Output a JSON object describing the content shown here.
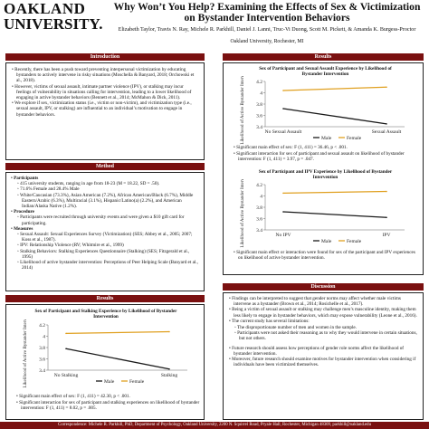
{
  "header": {
    "logo_line1": "OAKLAND",
    "logo_line2": "UNIVERSITY.",
    "title": "Why Won’t You Help? Examining the Effects of Sex & Victimization on Bystander Intervention Behaviors",
    "authors": "Elizabeth Taylor, Travis N. Ray, Michele R. Parkhill, Daniel J. Lanni, Truc-Vi Duong, Scott M. Pickett, & Amanda K. Burgess-Proctor",
    "affiliation": "Oakland University, Rochester, MI"
  },
  "introduction": {
    "heading": "Introduction",
    "bullets": [
      "Recently, there has been a push toward preventing interpersonal victimization by educating bystanders to actively intervene in risky situations (Moschella & Banyard, 2018; Orchowski et al., 2018).",
      "However, victims of sexual assault, intimate partner violence (IPV), or stalking may incur feelings of vulnerability in situations calling for intervention, leading to a lower likelihood of engaging in active bystander behaviors (Bennett et al., 2014; McMahon & Dick, 2011).",
      "We explore if sex, victimization status (i.e., victim or non-victim), and victimization type (i.e., sexual assault, IPV, or stalking) are influential to an individual’s motivation to engage in bystander behaviors."
    ]
  },
  "method": {
    "heading": "Method",
    "participants_label": "Participants",
    "participants": [
      "415 university students, ranging in age from 18-23 (M = 18.22, SD = .50).",
      "71.6% Female and 28.4% Male",
      "White/Caucasian (73.3%), Asian American (7.2%), African American/Black (6.7%), Middle Eastern/Arabic (6.3%), Multiracial (3.1%), Hispanic/Latino(a) (2.2%), and American Indian/Alaska Native (1.2%)."
    ],
    "procedure_label": "Procedure",
    "procedure": [
      "Participants were recruited through university events and were given a $10 gift card for participating."
    ],
    "measures_label": "Measures",
    "measures": [
      "Sexual Assault: Sexual Experiences Survey (Victimization) (SES; Abbey et al., 2005; 2007; Koss et al., 1987).",
      "IPV: Relationship Violence (RV; Whitmire et al., 1999)",
      "Stalking Behaviors: Stalking Experiences Questionnaire (Stalking) (SES; Fitzgerald et al., 1995)",
      "Likelihood of active bystander intervention: Perceptions of Peer Helping Scale (Banyard et al., 2014)"
    ]
  },
  "results_left": {
    "heading": "Results",
    "bullets": [
      "Significant main effect of sex: F (1, 411) = 42.30, p < .001.",
      "Significant interaction for sex of participant and stalking experiences on likelihood of bystander intervention: F (1, 411) = 8.02, p = .005."
    ]
  },
  "results_right": {
    "heading": "Results",
    "chart1_bullets": [
      "Significant main effect of sex: F (1, 411) = 36.46, p < .001.",
      "Significant interaction for sex of participant and sexual assault on likelihood of bystander intervention: F (1, 411) = 3.97, p = .047."
    ],
    "chart2_bullets": [
      "Significant main effect or interaction were found for sex of the participant and IPV experiences on likelihood of active bystander intervention."
    ]
  },
  "discussion": {
    "heading": "Discussion",
    "bullets": [
      "Findings can be interpreted to suggest that gender norms may affect whether male victims intervene as a bystander (Brown et al., 2014; Rosichelle et al., 2017).",
      "Being a victim of sexual assault or stalking may challenge men’s masculine identity, making them less likely to engage in bystander behaviors, which may expose vulnerability (Leone et al., 2016).",
      "The current study has several limitations:",
      "Future research should assess how perceptions of gender role norms affect the likelihood of bystander intervention.",
      "Moreover, future research should examine motives for bystander intervention when considering if individuals have been victimized themselves."
    ],
    "limitations": [
      "The disproportionate number of men and women in the sample.",
      "Participants were not asked their reasoning as to why they would intervene in certain situations, but not others."
    ]
  },
  "footer": {
    "text": "Correspondence: Michele R. Parkhill, PhD, Department of Psychology, Oakland University, 2200 N. Squirrel Road, Pryale Hall, Rochester, Michigan 48309, parkhill@oakland.edu"
  },
  "chart_data": [
    {
      "type": "line",
      "title": "Sex of Participant and Sexual Assault Experience by Likelihood of Bystander Intervention",
      "ylabel": "Likelihood of Active Bystander Intervention",
      "categories": [
        "No Sexual Assault",
        "Sexual Assault"
      ],
      "yticks": [
        "3.4",
        "3.6",
        "3.8",
        "4",
        "4.2"
      ],
      "ylim": [
        3.4,
        4.2
      ],
      "series": [
        {
          "name": "Male",
          "color": "#1a1a1a",
          "values": [
            3.72,
            3.45
          ]
        },
        {
          "name": "Female",
          "color": "#e0a020",
          "values": [
            4.04,
            4.1
          ]
        }
      ]
    },
    {
      "type": "line",
      "title": "Sex of Participant and IPV Experience by Likelihood of Bystander Intervention",
      "ylabel": "Likelihood of Active Bystander Intervention",
      "categories": [
        "No IPV",
        "IPV"
      ],
      "yticks": [
        "3.4",
        "3.6",
        "3.8",
        "4",
        "4.2"
      ],
      "ylim": [
        3.4,
        4.2
      ],
      "series": [
        {
          "name": "Male",
          "color": "#1a1a1a",
          "values": [
            3.72,
            3.62
          ]
        },
        {
          "name": "Female",
          "color": "#e0a020",
          "values": [
            4.05,
            4.08
          ]
        }
      ]
    },
    {
      "type": "line",
      "title": "Sex of Participant and Stalking Experience by Likelihood of Bystander Intervention",
      "ylabel": "Likelihood of Active Bystander Intervention",
      "categories": [
        "No Stalking",
        "Stalking"
      ],
      "yticks": [
        "3.4",
        "3.6",
        "3.8",
        "4",
        "4.2"
      ],
      "ylim": [
        3.4,
        4.2
      ],
      "series": [
        {
          "name": "Male",
          "color": "#1a1a1a",
          "values": [
            3.78,
            3.42
          ]
        },
        {
          "name": "Female",
          "color": "#e0a020",
          "values": [
            4.05,
            4.08
          ]
        }
      ]
    }
  ]
}
